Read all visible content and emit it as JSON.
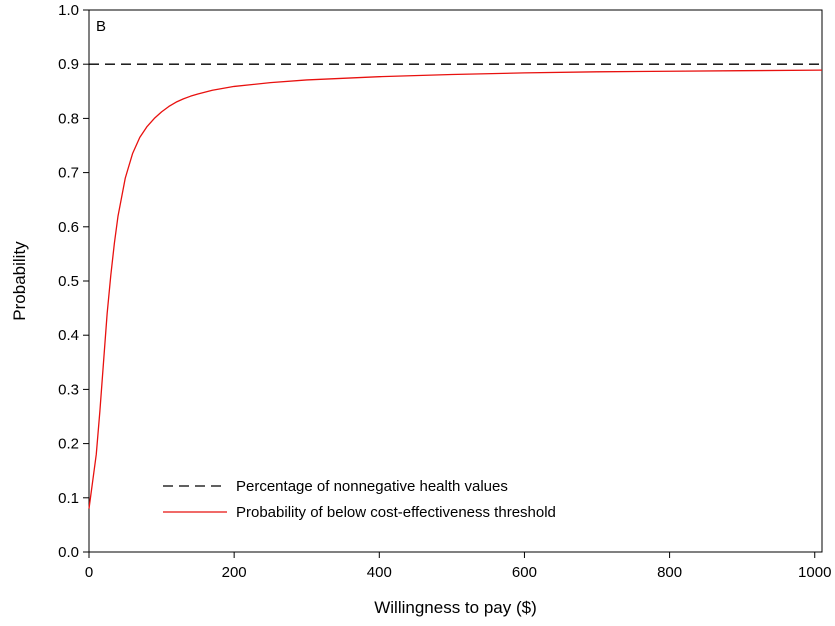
{
  "chart_data": {
    "type": "line",
    "panel_label": "B",
    "xlabel": "Willingness to pay ($)",
    "ylabel": "Probability",
    "xlim": [
      0,
      1010
    ],
    "ylim": [
      0,
      1.0
    ],
    "x_ticks": [
      0,
      200,
      400,
      600,
      800,
      1000
    ],
    "y_ticks": [
      0.0,
      0.1,
      0.2,
      0.3,
      0.4,
      0.5,
      0.6,
      0.7,
      0.8,
      0.9,
      1.0
    ],
    "x_tick_labels": [
      "0",
      "200",
      "400",
      "600",
      "800",
      "1000"
    ],
    "y_tick_labels": [
      "0.0",
      "0.1",
      "0.2",
      "0.3",
      "0.4",
      "0.5",
      "0.6",
      "0.7",
      "0.8",
      "0.9",
      "1.0"
    ],
    "grid": false,
    "legend_position": "bottom-left",
    "series": [
      {
        "name": "Percentage of nonnegative health values",
        "style": "dashed",
        "color": "#000000",
        "x": [
          0,
          1010
        ],
        "y": [
          0.9,
          0.9
        ]
      },
      {
        "name": "Probability of below cost-effectiveness threshold",
        "style": "solid",
        "color": "#e8110f",
        "x": [
          0,
          5,
          10,
          15,
          20,
          25,
          30,
          35,
          40,
          45,
          50,
          60,
          70,
          80,
          90,
          100,
          110,
          120,
          130,
          140,
          150,
          170,
          200,
          250,
          300,
          400,
          500,
          600,
          700,
          800,
          900,
          1010
        ],
        "y": [
          0.08,
          0.13,
          0.18,
          0.26,
          0.35,
          0.44,
          0.51,
          0.57,
          0.62,
          0.655,
          0.69,
          0.735,
          0.765,
          0.785,
          0.8,
          0.812,
          0.822,
          0.83,
          0.836,
          0.841,
          0.845,
          0.852,
          0.859,
          0.866,
          0.871,
          0.877,
          0.881,
          0.884,
          0.886,
          0.887,
          0.888,
          0.889
        ]
      }
    ]
  }
}
